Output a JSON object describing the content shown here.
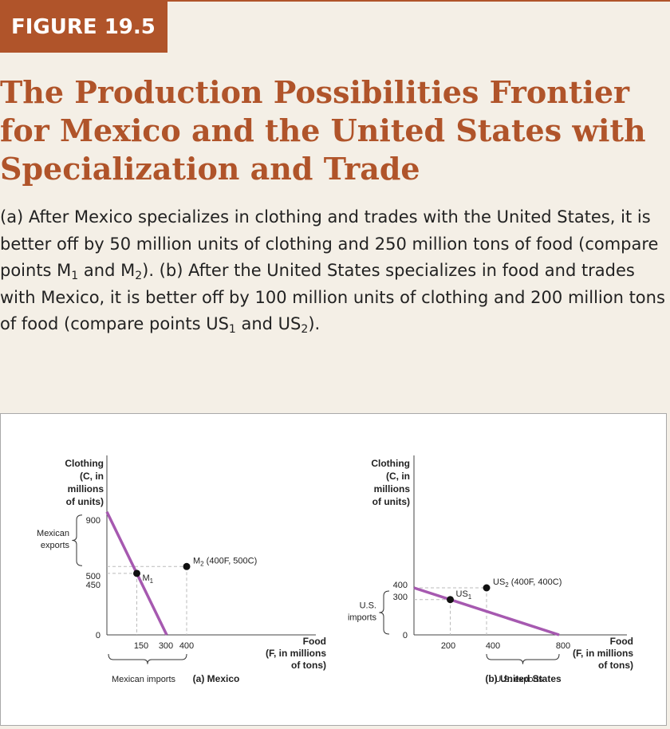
{
  "figure_label": "FIGURE 19.5",
  "title_lines": [
    "The Production Possibilities Frontier",
    "for Mexico and the United States with",
    "Specialization and Trade"
  ],
  "caption": {
    "part_a_1": "(a) After Mexico specializes in clothing and trades with the United States, it is better off by 50 million units of clothing and 250 million tons of food (compare points M",
    "sub_m1": "1",
    "and": " and M",
    "sub_m2": "2",
    "part_b_1": "). (b) After the United States specializes in food and trades with Mexico, it is better off by 100 million units of clothing and 200 million tons of food (compare points US",
    "sub_us1": "1",
    "and2": " and US",
    "sub_us2": "2",
    "end": ")."
  },
  "colors": {
    "accent": "#b0542a",
    "ppf": "#a659b0",
    "guide": "#bbbbbb",
    "background": "#f4efe6"
  },
  "chart_data": [
    {
      "type": "line",
      "panel_label": "(a) Mexico",
      "ylabel": [
        "Clothing",
        "(C, in",
        "millions",
        "of units)"
      ],
      "xlabel": [
        "Food",
        "(F, in millions",
        "of tons)"
      ],
      "x_ticks": [
        "150",
        "300",
        "400"
      ],
      "y_ticks": [
        "900",
        "500",
        "450",
        "0"
      ],
      "ppf": {
        "x": [
          0,
          300
        ],
        "y": [
          900,
          0
        ]
      },
      "points": [
        {
          "id": "M1",
          "label": "M",
          "sub": "1",
          "x": 150,
          "y": 450
        },
        {
          "id": "M2",
          "label": "M",
          "sub": "2",
          "extra": " (400F, 500C)",
          "x": 400,
          "y": 500
        }
      ],
      "brace_y": {
        "label": [
          "Mexican",
          "exports"
        ],
        "from": 500,
        "to": 900
      },
      "brace_x": {
        "label": "Mexican imports",
        "from": 0,
        "to": 400
      }
    },
    {
      "type": "line",
      "panel_label": "(b) United States",
      "ylabel": [
        "Clothing",
        "(C, in",
        "millions",
        "of units)"
      ],
      "xlabel": [
        "Food",
        "(F, in millions",
        "of tons)"
      ],
      "x_ticks": [
        "200",
        "400",
        "800"
      ],
      "y_ticks": [
        "400",
        "300",
        "0"
      ],
      "ppf": {
        "x": [
          0,
          800
        ],
        "y": [
          400,
          0
        ]
      },
      "points": [
        {
          "id": "US1",
          "label": "US",
          "sub": "1",
          "x": 200,
          "y": 300
        },
        {
          "id": "US2",
          "label": "US",
          "sub": "2",
          "extra": " (400F, 400C)",
          "x": 400,
          "y": 400
        }
      ],
      "brace_y": {
        "label": [
          "U.S.",
          "imports"
        ],
        "from": 0,
        "to": 400
      },
      "brace_x": {
        "label": "U.S. exports",
        "from": 400,
        "to": 800
      }
    }
  ]
}
